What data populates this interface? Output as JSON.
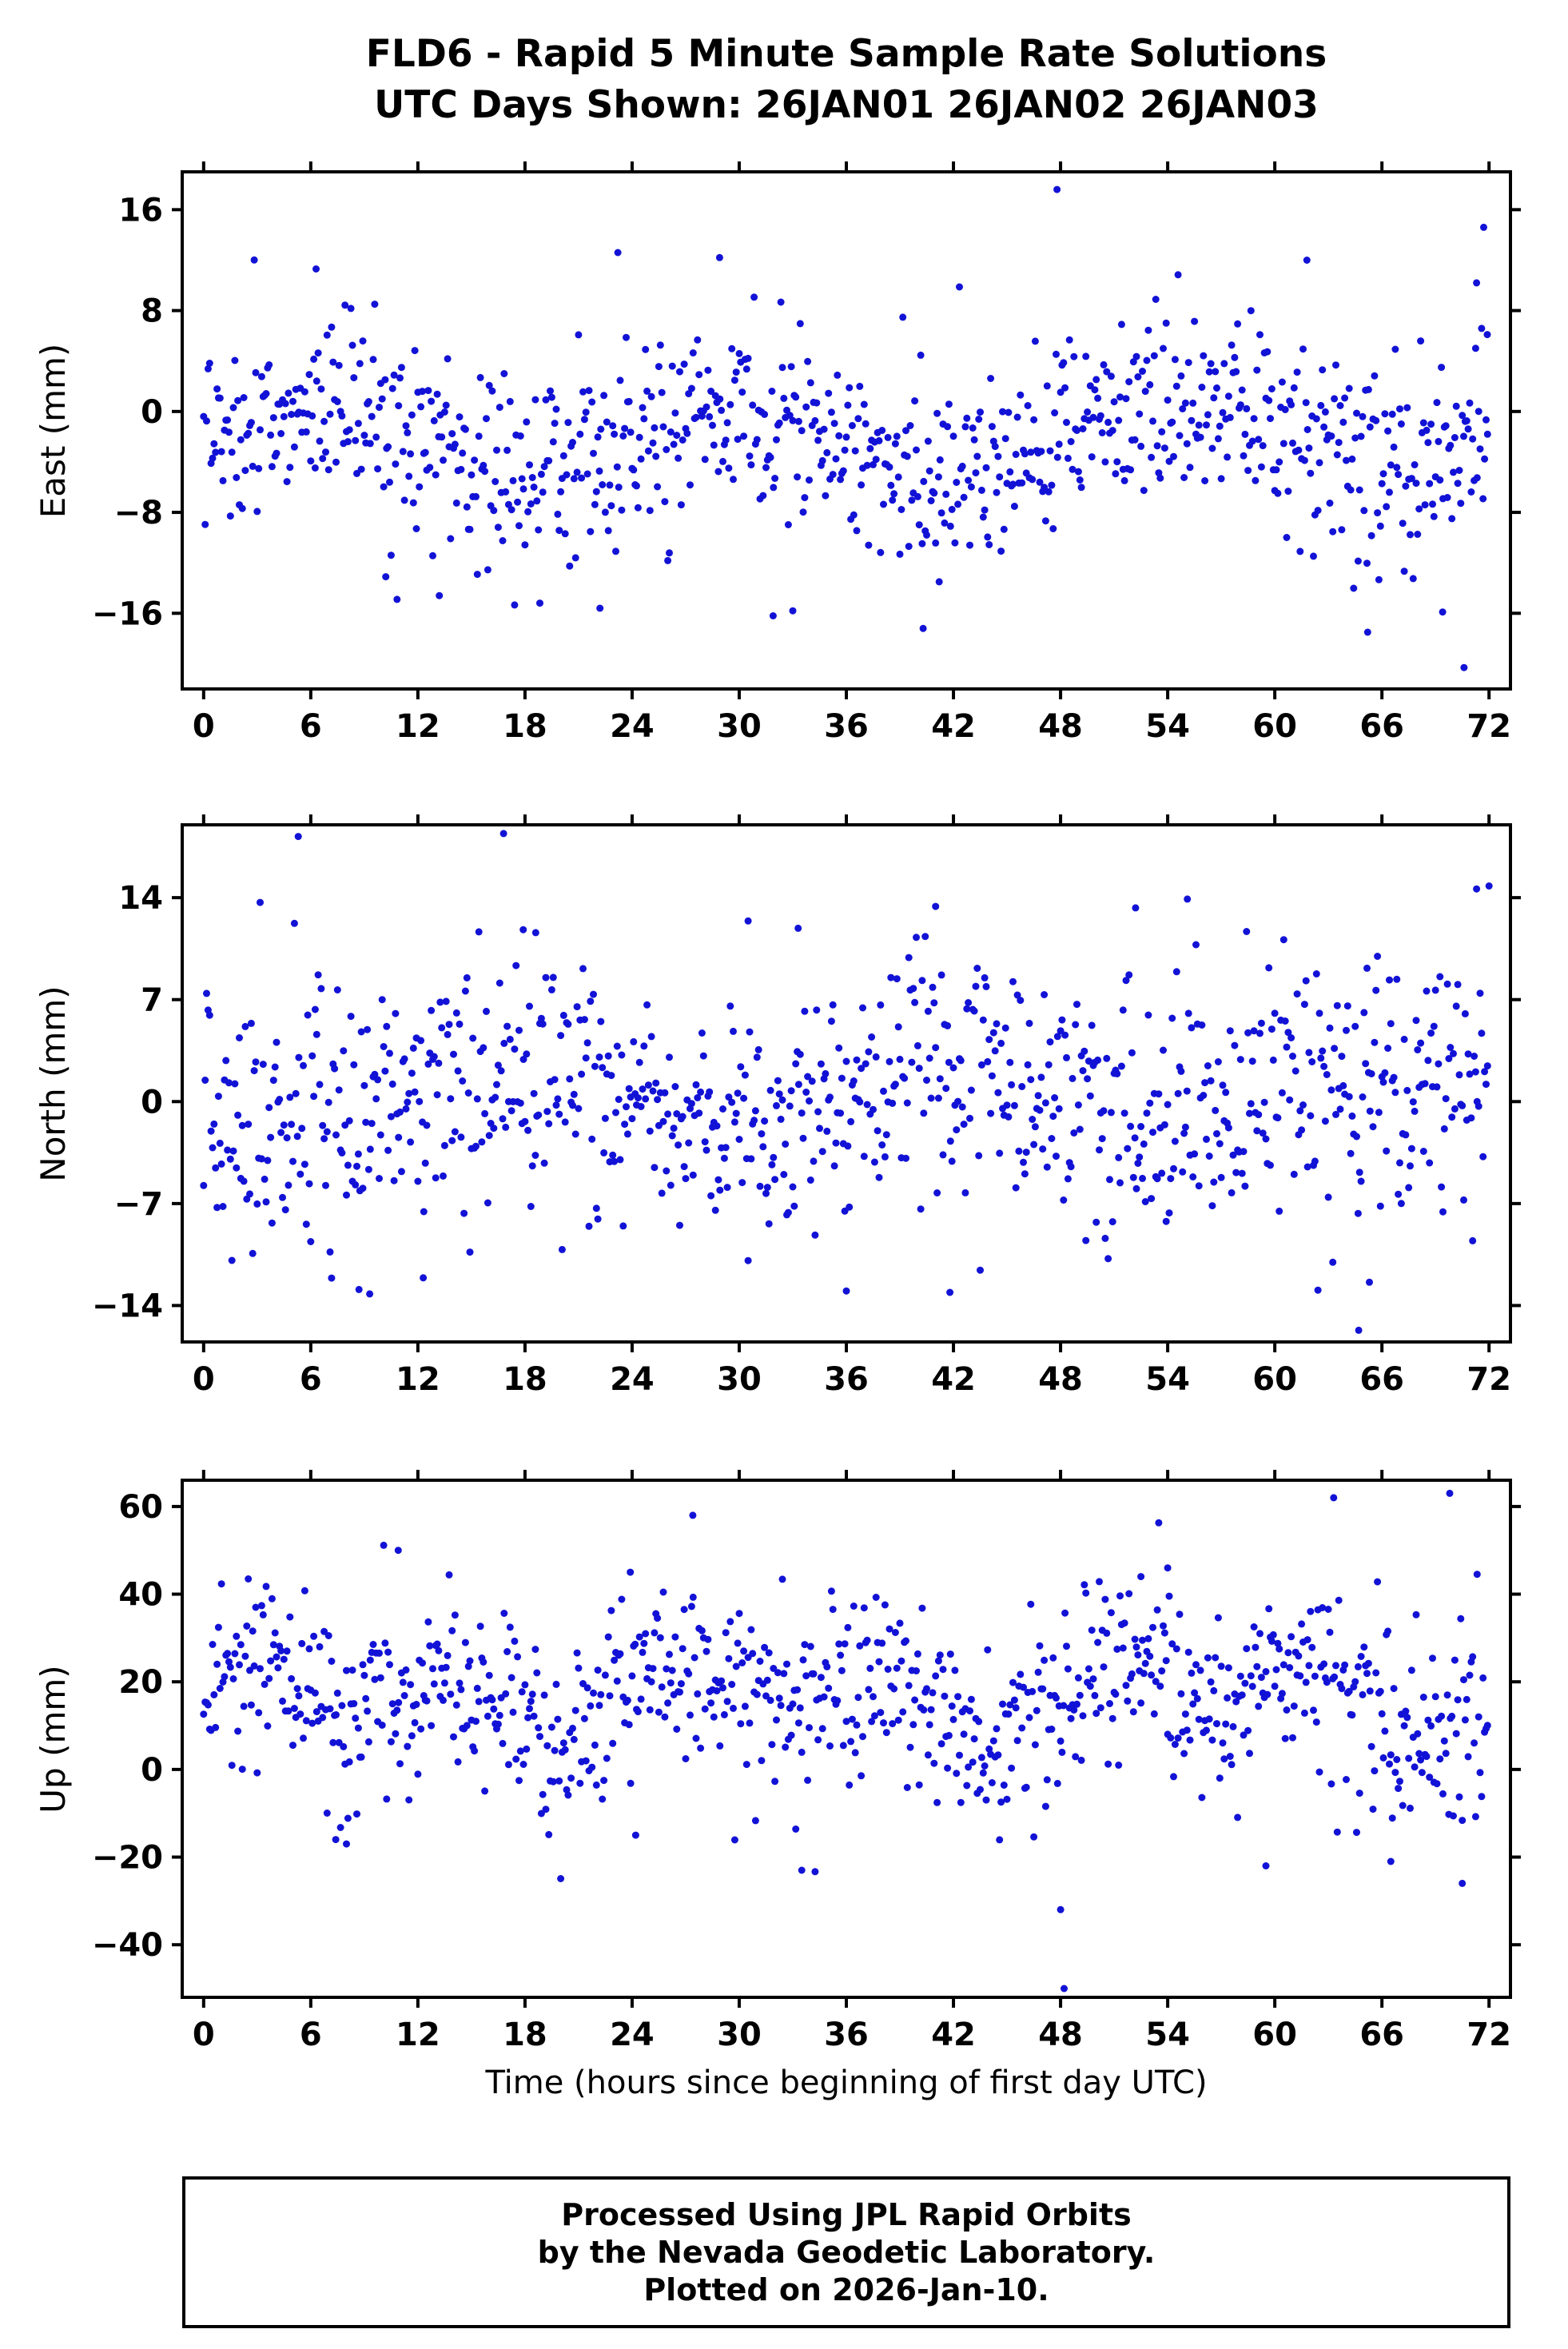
{
  "page": {
    "title_line1": "FLD6 - Rapid 5 Minute Sample Rate Solutions",
    "title_line2": "UTC Days Shown:  26JAN01 26JAN02 26JAN03",
    "xlabel": "Time (hours since beginning of first day UTC)",
    "footer_line1": "Processed Using JPL Rapid Orbits",
    "footer_line2": "by the Nevada Geodetic Laboratory.",
    "footer_line3": "Plotted on 2026-Jan-10.",
    "colors": {
      "point": "#1212d6",
      "frame": "#000000"
    }
  },
  "chart_data": [
    {
      "type": "scatter",
      "name": "east",
      "ylabel": "East (mm)",
      "ylim": [
        -22,
        19
      ],
      "yticks": [
        -16,
        -8,
        0,
        8,
        16
      ],
      "xlim": [
        -1.2,
        73.2
      ],
      "xticks": [
        0,
        6,
        12,
        18,
        24,
        30,
        36,
        42,
        48,
        54,
        60,
        66,
        72
      ],
      "grid": false,
      "gen": {
        "n": 864,
        "seed": 7,
        "mean": -2.4,
        "std": 3.9,
        "amp": 2.8,
        "period": 24,
        "phase": 0
      },
      "outliers": [
        [
          47.8,
          17.6
        ],
        [
          70.6,
          -20.3
        ],
        [
          71.7,
          14.6
        ],
        [
          23.2,
          12.6
        ],
        [
          28.9,
          12.2
        ],
        [
          6.3,
          11.3
        ],
        [
          61.8,
          12.0
        ],
        [
          65.2,
          -17.5
        ],
        [
          40.3,
          -17.2
        ],
        [
          31.9,
          -16.2
        ],
        [
          22.2,
          -15.6
        ],
        [
          69.4,
          -15.9
        ],
        [
          71.3,
          10.2
        ],
        [
          71.9,
          6.1
        ],
        [
          33.0,
          -15.8
        ],
        [
          41.2,
          -13.5
        ],
        [
          13.2,
          -14.6
        ],
        [
          10.2,
          -13.1
        ]
      ]
    },
    {
      "type": "scatter",
      "name": "north",
      "ylabel": "North (mm)",
      "ylim": [
        -16.5,
        19
      ],
      "yticks": [
        -14,
        -7,
        0,
        7,
        14
      ],
      "xlim": [
        -1.2,
        73.2
      ],
      "xticks": [
        0,
        6,
        12,
        18,
        24,
        30,
        36,
        42,
        48,
        54,
        60,
        66,
        72
      ],
      "grid": false,
      "gen": {
        "n": 864,
        "seed": 13,
        "mean": 0.2,
        "std": 4.1,
        "amp": 1.6,
        "period": 24,
        "phase": 3.1
      },
      "outliers": [
        [
          5.3,
          18.2
        ],
        [
          16.8,
          18.4
        ],
        [
          64.7,
          -15.7
        ],
        [
          8.7,
          -12.9
        ],
        [
          9.3,
          -13.2
        ],
        [
          12.3,
          -12.1
        ],
        [
          36.0,
          -13.0
        ],
        [
          41.8,
          -13.1
        ],
        [
          55.1,
          13.9
        ],
        [
          72.0,
          14.8
        ],
        [
          71.3,
          14.6
        ],
        [
          41.0,
          13.4
        ],
        [
          17.9,
          11.8
        ],
        [
          18.6,
          11.6
        ],
        [
          30.5,
          12.4
        ],
        [
          33.3,
          11.9
        ],
        [
          65.3,
          -12.4
        ],
        [
          52.2,
          13.3
        ]
      ]
    },
    {
      "type": "scatter",
      "name": "up",
      "ylabel": "Up (mm)",
      "ylim": [
        -52,
        66
      ],
      "yticks": [
        -40,
        -20,
        0,
        20,
        40,
        60
      ],
      "xlim": [
        -1.2,
        73.2
      ],
      "xticks": [
        0,
        6,
        12,
        18,
        24,
        30,
        36,
        42,
        48,
        54,
        60,
        66,
        72
      ],
      "grid": false,
      "gen": {
        "n": 864,
        "seed": 21,
        "mean": 16,
        "std": 10.5,
        "amp": 6,
        "period": 12,
        "phase": 0.3,
        "amp2": 4,
        "period2": 24,
        "phase2": 0
      },
      "outliers": [
        [
          48.2,
          -50
        ],
        [
          48.0,
          -32
        ],
        [
          63.3,
          62
        ],
        [
          69.8,
          63
        ],
        [
          27.4,
          58
        ],
        [
          23.9,
          45
        ],
        [
          10.9,
          50
        ],
        [
          54.0,
          46
        ],
        [
          52.5,
          44
        ],
        [
          33.5,
          -23
        ],
        [
          70.5,
          -26
        ],
        [
          66.5,
          -21
        ],
        [
          8.0,
          -17
        ],
        [
          7.4,
          -16
        ],
        [
          59.5,
          -22
        ],
        [
          24.2,
          -15
        ]
      ]
    }
  ]
}
